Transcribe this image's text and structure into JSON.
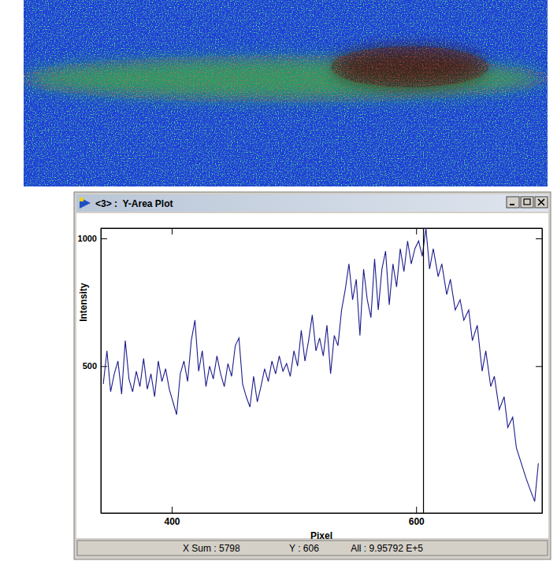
{
  "chart_data": {
    "type": "line",
    "window_title": "<3> :  Y-Area Plot",
    "xlabel": "Pixel",
    "ylabel": "Intensity",
    "x": [
      344,
      347,
      350,
      353,
      356,
      359,
      362,
      365,
      368,
      371,
      374,
      377,
      380,
      383,
      386,
      389,
      392,
      395,
      398,
      401,
      404,
      407,
      410,
      413,
      416,
      419,
      422,
      425,
      428,
      431,
      434,
      437,
      440,
      443,
      446,
      449,
      452,
      455,
      458,
      461,
      464,
      467,
      470,
      473,
      476,
      479,
      482,
      485,
      488,
      491,
      494,
      497,
      500,
      503,
      506,
      509,
      512,
      515,
      518,
      521,
      524,
      527,
      530,
      533,
      536,
      539,
      542,
      545,
      548,
      551,
      554,
      557,
      560,
      563,
      566,
      569,
      572,
      575,
      578,
      581,
      584,
      587,
      590,
      593,
      596,
      599,
      602,
      605,
      608,
      611,
      614,
      618,
      621,
      625,
      628,
      632,
      636,
      639,
      643,
      646,
      650,
      654,
      657,
      661,
      664,
      668,
      672,
      675,
      679,
      682,
      686,
      690,
      693,
      697,
      700
    ],
    "values": [
      430,
      560,
      400,
      470,
      520,
      390,
      600,
      450,
      400,
      480,
      420,
      530,
      410,
      470,
      380,
      520,
      440,
      490,
      410,
      360,
      310,
      470,
      520,
      440,
      600,
      680,
      480,
      560,
      420,
      500,
      450,
      540,
      470,
      420,
      510,
      460,
      580,
      610,
      430,
      380,
      340,
      460,
      360,
      420,
      490,
      440,
      520,
      470,
      540,
      480,
      510,
      460,
      560,
      500,
      640,
      520,
      600,
      700,
      560,
      610,
      540,
      660,
      470,
      620,
      580,
      720,
      800,
      900,
      760,
      840,
      620,
      880,
      760,
      690,
      920,
      720,
      880,
      950,
      740,
      900,
      810,
      960,
      870,
      990,
      900,
      960,
      990,
      930,
      1040,
      880,
      960,
      850,
      900,
      780,
      840,
      720,
      760,
      680,
      720,
      600,
      660,
      480,
      560,
      420,
      460,
      330,
      380,
      260,
      300,
      180,
      120,
      60,
      20,
      -30,
      120
    ],
    "color": "#1c1c8c",
    "xlim": [
      342,
      703
    ],
    "ylim": [
      -75,
      1040
    ],
    "xticks": [
      400,
      600
    ],
    "yticks": [
      500,
      1000
    ],
    "cursor": 606,
    "status_bar": [
      "X Sum : 5798",
      "Y : 606",
      "All : 9.95792 E+5"
    ]
  }
}
